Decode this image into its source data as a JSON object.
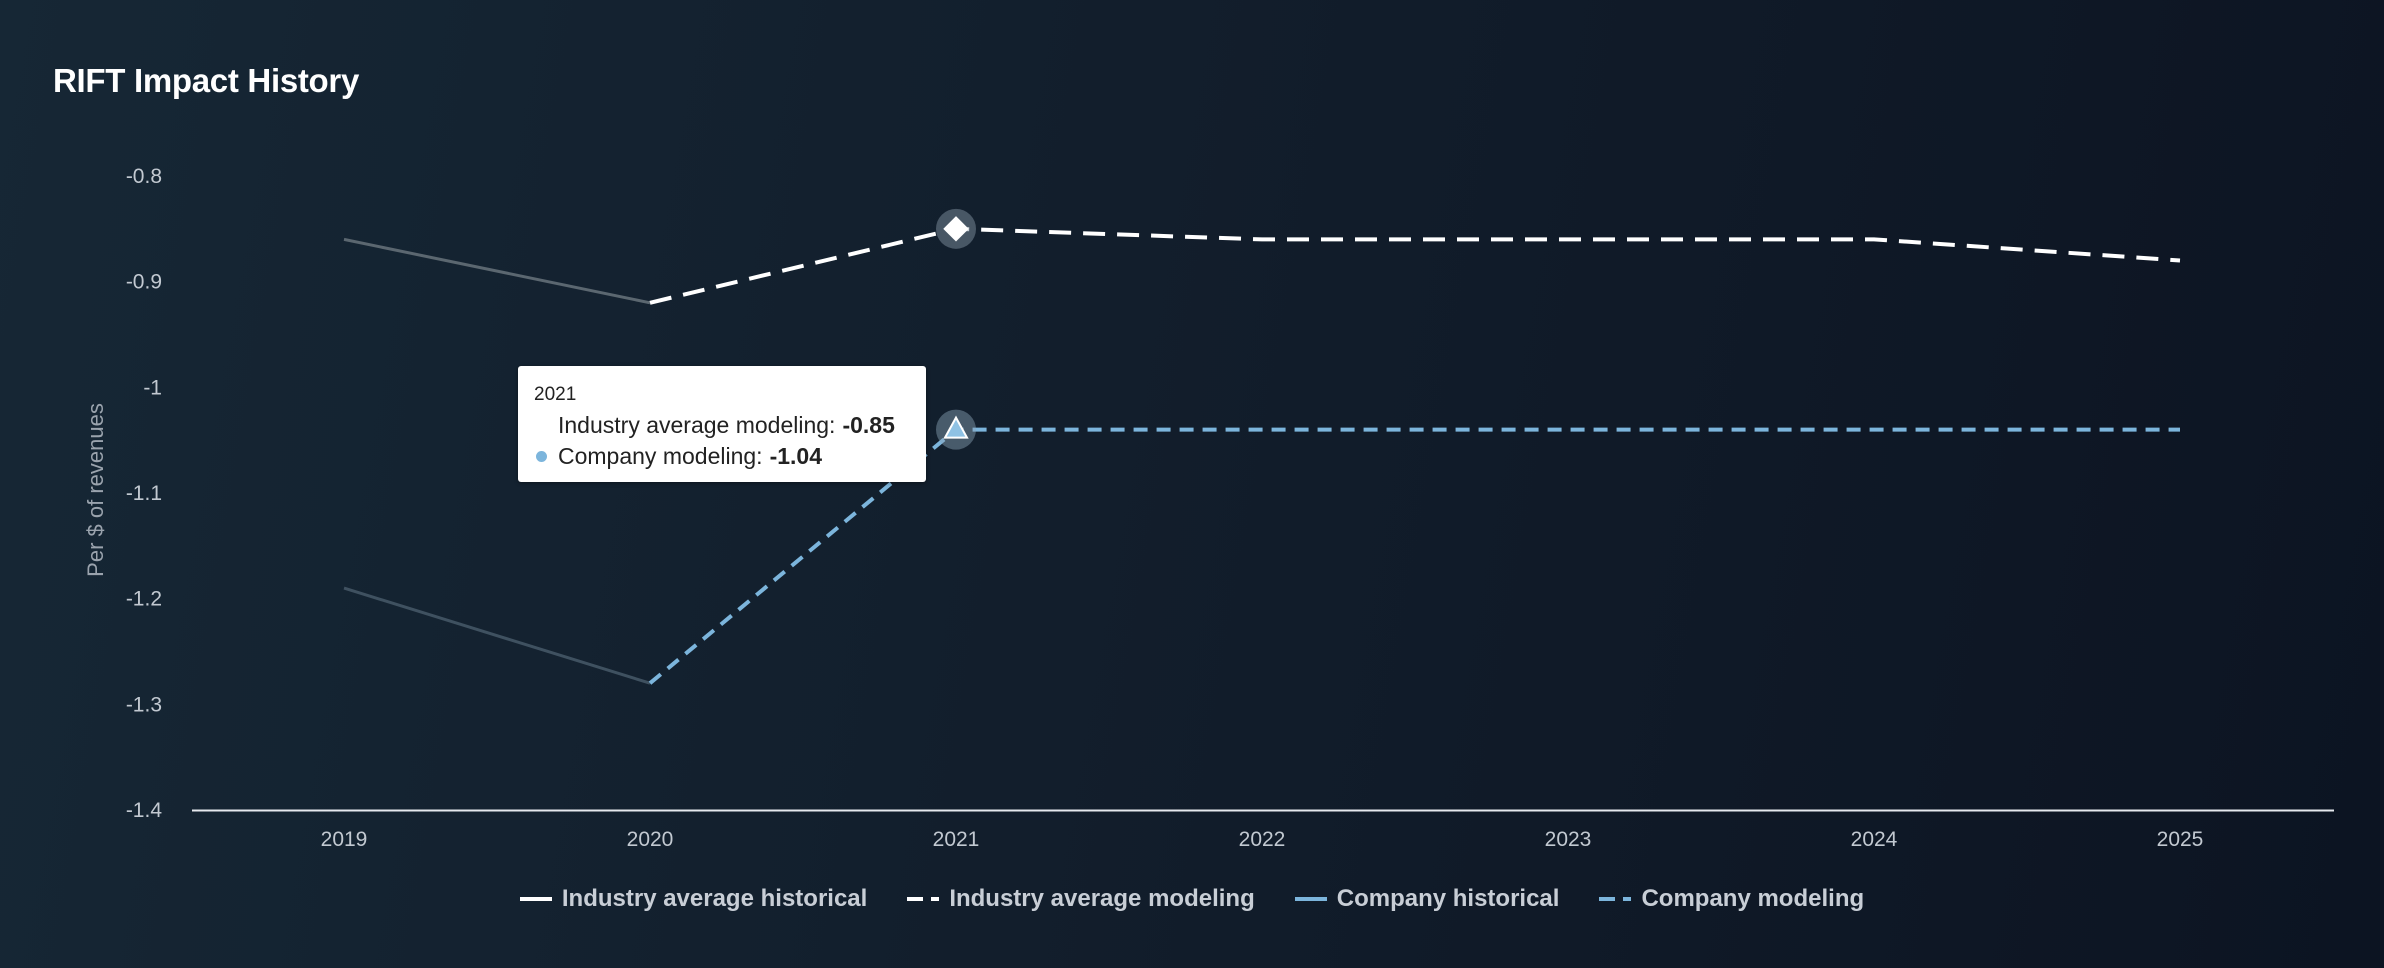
{
  "title": "RIFT Impact History",
  "chart_data": {
    "type": "line",
    "x": [
      "2019",
      "2020",
      "2021",
      "2022",
      "2023",
      "2024",
      "2025"
    ],
    "ylabel": "Per $ of revenues",
    "ylim": [
      -1.4,
      -0.8
    ],
    "yticks": [
      -0.8,
      -0.9,
      -1,
      -1.1,
      -1.2,
      -1.3,
      -1.4
    ],
    "ytick_labels": [
      "-0.8",
      "-0.9",
      "-1",
      "-1.1",
      "-1.2",
      "-1.3",
      "-1.4"
    ],
    "series": [
      {
        "name": "Industry average historical",
        "style": "solid",
        "color": "#ffffff",
        "values": [
          -0.86,
          -0.92,
          null,
          null,
          null,
          null,
          null
        ]
      },
      {
        "name": "Industry average modeling",
        "style": "dashed",
        "color": "#ffffff",
        "values": [
          null,
          -0.92,
          -0.85,
          -0.86,
          -0.86,
          -0.86,
          -0.88
        ]
      },
      {
        "name": "Company historical",
        "style": "solid",
        "color": "#7cb5dc",
        "values": [
          -1.19,
          -1.28,
          null,
          null,
          null,
          null,
          null
        ]
      },
      {
        "name": "Company modeling",
        "style": "dashed",
        "color": "#7cb5dc",
        "values": [
          null,
          -1.28,
          -1.04,
          -1.04,
          -1.04,
          -1.04,
          -1.04
        ]
      }
    ],
    "highlight_index": 2,
    "legend_position": "bottom",
    "grid": false
  },
  "tooltip": {
    "title": "2021",
    "rows": [
      {
        "label": "Industry average modeling:",
        "value": "-0.85",
        "color": "#ffffff"
      },
      {
        "label": "Company modeling:",
        "value": "-1.04",
        "color": "#7cb5dc"
      }
    ]
  }
}
